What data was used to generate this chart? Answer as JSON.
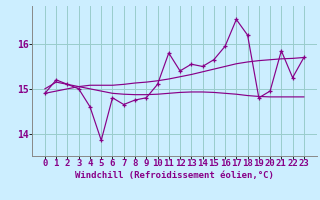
{
  "xlabel": "Windchill (Refroidissement éolien,°C)",
  "background_color": "#cceeff",
  "line_color": "#880088",
  "grid_color": "#99cccc",
  "x_values": [
    0,
    1,
    2,
    3,
    4,
    5,
    6,
    7,
    8,
    9,
    10,
    11,
    12,
    13,
    14,
    15,
    16,
    17,
    18,
    19,
    20,
    21,
    22,
    23
  ],
  "y_main": [
    14.9,
    15.2,
    15.1,
    15.0,
    14.6,
    13.85,
    14.8,
    14.65,
    14.75,
    14.8,
    15.1,
    15.8,
    15.4,
    15.55,
    15.5,
    15.65,
    15.95,
    16.55,
    16.2,
    14.8,
    14.95,
    15.85,
    15.25,
    15.7
  ],
  "y_smooth1": [
    15.0,
    15.15,
    15.1,
    15.05,
    15.0,
    14.95,
    14.9,
    14.88,
    14.87,
    14.87,
    14.88,
    14.9,
    14.92,
    14.93,
    14.93,
    14.92,
    14.9,
    14.88,
    14.85,
    14.83,
    14.82,
    14.82,
    14.82,
    14.82
  ],
  "y_smooth2": [
    14.9,
    14.95,
    15.0,
    15.05,
    15.08,
    15.08,
    15.08,
    15.1,
    15.13,
    15.15,
    15.18,
    15.22,
    15.27,
    15.32,
    15.38,
    15.44,
    15.5,
    15.56,
    15.6,
    15.63,
    15.65,
    15.67,
    15.68,
    15.7
  ],
  "ylim": [
    13.5,
    16.85
  ],
  "yticks": [
    14,
    15,
    16
  ],
  "xticks": [
    0,
    1,
    2,
    3,
    4,
    5,
    6,
    7,
    8,
    9,
    10,
    11,
    12,
    13,
    14,
    15,
    16,
    17,
    18,
    19,
    20,
    21,
    22,
    23
  ],
  "xlabel_fontsize": 6.5,
  "tick_fontsize": 6.5
}
